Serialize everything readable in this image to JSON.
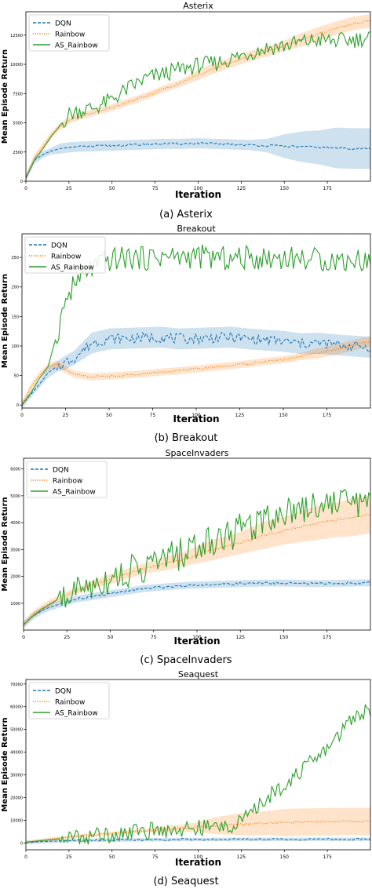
{
  "figure": {
    "ylabel": "Mean Episode Return",
    "xlabel": "Iteration"
  },
  "chart_data": [
    {
      "type": "line",
      "title": "Asterix",
      "caption": "(a) Asterix",
      "xlabel": "Iteration",
      "ylabel": "Mean Episode Return",
      "xlim": [
        0,
        200
      ],
      "ylim": [
        0,
        14500
      ],
      "xticks": [
        0,
        25,
        50,
        75,
        100,
        125,
        150,
        175
      ],
      "xtick_labels": [
        "0",
        "25",
        "50",
        "75",
        "100",
        "125",
        "150",
        "175"
      ],
      "yticks": [
        0,
        2500,
        5000,
        7500,
        10000,
        12500
      ],
      "ytick_labels": [
        "0",
        "2500",
        "5000",
        "7500",
        "10000",
        "12500"
      ],
      "legend": "top-left",
      "grid": false,
      "x": [
        0,
        5,
        10,
        15,
        20,
        25,
        30,
        40,
        50,
        60,
        70,
        80,
        90,
        100,
        110,
        120,
        130,
        140,
        150,
        160,
        170,
        180,
        190,
        199
      ],
      "series": [
        {
          "name": "DQN",
          "color": "#1f77b4",
          "style": "dashed",
          "band": [
            0.02,
            0.02,
            0.02,
            0.02,
            0.03,
            0.03,
            0.03,
            0.03,
            0.03,
            0.03,
            0.03,
            0.03,
            0.03,
            0.03,
            0.03,
            0.03,
            0.03,
            0.04,
            0.07,
            0.09,
            0.1,
            0.12,
            0.12,
            0.12
          ],
          "values": [
            300,
            1800,
            2300,
            2600,
            2800,
            2900,
            2950,
            3000,
            3050,
            3100,
            3150,
            3200,
            3200,
            3250,
            3200,
            3150,
            3100,
            3050,
            3000,
            2950,
            2900,
            2850,
            2800,
            2800
          ]
        },
        {
          "name": "Rainbow",
          "color": "#ff7f0e",
          "style": "dotted",
          "band": [
            0.02,
            0.02,
            0.02,
            0.02,
            0.02,
            0.02,
            0.02,
            0.02,
            0.02,
            0.02,
            0.02,
            0.02,
            0.02,
            0.03,
            0.03,
            0.03,
            0.03,
            0.03,
            0.03,
            0.04,
            0.04,
            0.04,
            0.04,
            0.04
          ],
          "values": [
            300,
            2000,
            3000,
            4000,
            4700,
            5200,
            5500,
            5900,
            6300,
            6800,
            7300,
            7900,
            8400,
            9100,
            9700,
            10200,
            10700,
            11100,
            11600,
            12100,
            12600,
            13100,
            13500,
            13700
          ]
        },
        {
          "name": "AS_Rainbow",
          "color": "#2ca02c",
          "style": "solid",
          "band": [
            0,
            0,
            0,
            0,
            0,
            0,
            0,
            0,
            0,
            0,
            0,
            0,
            0,
            0,
            0,
            0,
            0,
            0,
            0,
            0,
            0,
            0,
            0,
            0
          ],
          "jitter": 0.05,
          "values": [
            300,
            1800,
            2800,
            3900,
            4800,
            5700,
            6000,
            6300,
            7000,
            8000,
            8800,
            9200,
            9600,
            9900,
            10100,
            10500,
            11000,
            11400,
            11600,
            11900,
            12100,
            12000,
            12100,
            12300
          ]
        }
      ]
    },
    {
      "type": "line",
      "title": "Breakout",
      "caption": "(b) Breakout",
      "xlabel": "Iteration",
      "ylabel": "Mean Episode Return",
      "xlim": [
        0,
        200
      ],
      "ylim": [
        -5,
        290
      ],
      "xticks": [
        0,
        25,
        50,
        75,
        100,
        125,
        150,
        175
      ],
      "xtick_labels": [
        "0",
        "25",
        "50",
        "75",
        "100",
        "125",
        "150",
        "175"
      ],
      "yticks": [
        0,
        50,
        100,
        150,
        200,
        250
      ],
      "ytick_labels": [
        "0",
        "50",
        "100",
        "150",
        "200",
        "250"
      ],
      "legend": "top-left",
      "grid": false,
      "x": [
        0,
        5,
        10,
        15,
        20,
        25,
        30,
        40,
        50,
        60,
        70,
        80,
        90,
        100,
        110,
        120,
        130,
        140,
        150,
        160,
        170,
        180,
        190,
        199
      ],
      "series": [
        {
          "name": "DQN",
          "color": "#1f77b4",
          "style": "dashed",
          "band": [
            0.02,
            0.02,
            0.02,
            0.03,
            0.03,
            0.04,
            0.04,
            0.06,
            0.06,
            0.06,
            0.06,
            0.06,
            0.06,
            0.06,
            0.06,
            0.06,
            0.06,
            0.06,
            0.06,
            0.06,
            0.06,
            0.06,
            0.06,
            0.06
          ],
          "jitter": 0.03,
          "values": [
            0,
            18,
            35,
            55,
            65,
            72,
            80,
            105,
            112,
            113,
            114,
            115,
            112,
            113,
            114,
            115,
            112,
            110,
            108,
            104,
            105,
            102,
            100,
            98
          ]
        },
        {
          "name": "Rainbow",
          "color": "#ff7f0e",
          "style": "dotted",
          "band": [
            0.02,
            0.02,
            0.02,
            0.02,
            0.02,
            0.02,
            0.02,
            0.02,
            0.02,
            0.02,
            0.02,
            0.02,
            0.02,
            0.02,
            0.02,
            0.02,
            0.02,
            0.02,
            0.02,
            0.02,
            0.03,
            0.03,
            0.03,
            0.03
          ],
          "values": [
            0,
            30,
            50,
            65,
            70,
            60,
            52,
            48,
            49,
            51,
            53,
            56,
            58,
            61,
            64,
            67,
            70,
            74,
            77,
            82,
            88,
            94,
            101,
            108
          ]
        },
        {
          "name": "AS_Rainbow",
          "color": "#2ca02c",
          "style": "solid",
          "band": [
            0,
            0,
            0,
            0,
            0,
            0,
            0,
            0,
            0,
            0,
            0,
            0,
            0,
            0,
            0,
            0,
            0,
            0,
            0,
            0,
            0,
            0,
            0,
            0
          ],
          "jitter": 0.07,
          "values": [
            0,
            20,
            45,
            65,
            120,
            175,
            205,
            232,
            245,
            250,
            248,
            252,
            250,
            252,
            250,
            247,
            250,
            249,
            250,
            248,
            247,
            245,
            246,
            245
          ]
        }
      ]
    },
    {
      "type": "line",
      "title": "SpaceInvaders",
      "caption": "(c) SpaceInvaders",
      "xlabel": "Iteration",
      "ylabel": "Mean Episode Return",
      "xlim": [
        0,
        200
      ],
      "ylim": [
        0,
        6400
      ],
      "xticks": [
        0,
        25,
        50,
        75,
        100,
        125,
        150,
        175
      ],
      "xtick_labels": [
        "0",
        "25",
        "50",
        "75",
        "100",
        "125",
        "150",
        "175"
      ],
      "yticks": [
        1000,
        2000,
        3000,
        4000,
        5000,
        6000
      ],
      "ytick_labels": [
        "1000",
        "2000",
        "3000",
        "4000",
        "5000",
        "6000"
      ],
      "legend": "top-left",
      "grid": false,
      "x": [
        0,
        5,
        10,
        15,
        20,
        25,
        30,
        40,
        50,
        60,
        70,
        80,
        90,
        100,
        110,
        120,
        130,
        140,
        150,
        160,
        170,
        180,
        190,
        199
      ],
      "series": [
        {
          "name": "DQN",
          "color": "#1f77b4",
          "style": "dashed",
          "band": [
            0.02,
            0.02,
            0.02,
            0.02,
            0.02,
            0.02,
            0.02,
            0.02,
            0.02,
            0.02,
            0.02,
            0.02,
            0.02,
            0.02,
            0.02,
            0.02,
            0.02,
            0.02,
            0.02,
            0.02,
            0.02,
            0.02,
            0.02,
            0.02
          ],
          "values": [
            200,
            500,
            700,
            850,
            950,
            1050,
            1150,
            1250,
            1350,
            1450,
            1550,
            1600,
            1650,
            1680,
            1700,
            1720,
            1740,
            1750,
            1750,
            1740,
            1730,
            1740,
            1750,
            1760
          ]
        },
        {
          "name": "Rainbow",
          "color": "#ff7f0e",
          "style": "dotted",
          "band": [
            0.02,
            0.02,
            0.02,
            0.02,
            0.02,
            0.02,
            0.02,
            0.02,
            0.03,
            0.03,
            0.03,
            0.04,
            0.04,
            0.05,
            0.06,
            0.06,
            0.07,
            0.08,
            0.08,
            0.09,
            0.1,
            0.1,
            0.11,
            0.11
          ],
          "values": [
            200,
            550,
            800,
            1000,
            1150,
            1300,
            1450,
            1700,
            1900,
            2100,
            2300,
            2450,
            2600,
            2800,
            3000,
            3150,
            3350,
            3550,
            3700,
            3850,
            4000,
            4100,
            4200,
            4300
          ]
        },
        {
          "name": "AS_Rainbow",
          "color": "#2ca02c",
          "style": "solid",
          "band": [
            0,
            0,
            0,
            0,
            0,
            0,
            0,
            0,
            0,
            0,
            0,
            0,
            0,
            0,
            0,
            0,
            0,
            0,
            0,
            0,
            0,
            0,
            0,
            0
          ],
          "jitter": 0.1,
          "values": [
            200,
            500,
            750,
            950,
            1150,
            1300,
            1450,
            1700,
            1950,
            2150,
            2350,
            2600,
            2850,
            3100,
            3400,
            3600,
            3900,
            4200,
            4450,
            4600,
            4700,
            4800,
            4850,
            4700
          ]
        }
      ]
    },
    {
      "type": "line",
      "title": "Seaquest",
      "caption": "(d) Seaquest",
      "xlabel": "Iteration",
      "ylabel": "Mean Episode Return",
      "xlim": [
        0,
        200
      ],
      "ylim": [
        -3000,
        72000
      ],
      "xticks": [
        0,
        25,
        50,
        75,
        100,
        125,
        150,
        175
      ],
      "xtick_labels": [
        "0",
        "25",
        "50",
        "75",
        "100",
        "125",
        "150",
        "175"
      ],
      "yticks": [
        0,
        10000,
        20000,
        30000,
        40000,
        50000,
        60000,
        70000
      ],
      "ytick_labels": [
        "0",
        "10000",
        "20000",
        "30000",
        "40000",
        "50000",
        "60000",
        "70000"
      ],
      "legend": "top-left",
      "grid": false,
      "x": [
        0,
        5,
        10,
        15,
        20,
        25,
        30,
        40,
        50,
        60,
        70,
        80,
        90,
        100,
        110,
        120,
        130,
        140,
        150,
        160,
        170,
        180,
        190,
        199
      ],
      "series": [
        {
          "name": "DQN",
          "color": "#1f77b4",
          "style": "dashed",
          "band": [
            0.01,
            0.01,
            0.01,
            0.01,
            0.01,
            0.01,
            0.01,
            0.01,
            0.01,
            0.01,
            0.01,
            0.01,
            0.01,
            0.01,
            0.01,
            0.01,
            0.01,
            0.01,
            0.01,
            0.01,
            0.01,
            0.01,
            0.01,
            0.01
          ],
          "values": [
            200,
            400,
            600,
            750,
            900,
            1000,
            1100,
            1200,
            1300,
            1350,
            1400,
            1450,
            1500,
            1550,
            1600,
            1600,
            1600,
            1600,
            1600,
            1600,
            1600,
            1600,
            1600,
            1600
          ]
        },
        {
          "name": "Rainbow",
          "color": "#ff7f0e",
          "style": "dotted",
          "band": [
            0.01,
            0.01,
            0.01,
            0.01,
            0.01,
            0.01,
            0.01,
            0.01,
            0.01,
            0.01,
            0.01,
            0.02,
            0.02,
            0.03,
            0.05,
            0.06,
            0.07,
            0.07,
            0.08,
            0.08,
            0.08,
            0.08,
            0.08,
            0.08
          ],
          "values": [
            300,
            800,
            1300,
            1800,
            2200,
            2600,
            3000,
            3600,
            4200,
            4800,
            5400,
            6000,
            6500,
            7000,
            7600,
            8100,
            8500,
            8800,
            9000,
            9200,
            9300,
            9400,
            9500,
            9500
          ]
        },
        {
          "name": "AS_Rainbow",
          "color": "#2ca02c",
          "style": "solid",
          "band": [
            0,
            0,
            0,
            0,
            0,
            0,
            0,
            0,
            0,
            0,
            0,
            0,
            0,
            0,
            0,
            0,
            0,
            0,
            0,
            0,
            0,
            0,
            0,
            0
          ],
          "jitter": 0.05,
          "values": [
            300,
            700,
            1100,
            1500,
            1900,
            2300,
            2700,
            3300,
            4000,
            4700,
            5200,
            5700,
            6100,
            6500,
            7000,
            7800,
            12000,
            20000,
            26000,
            32000,
            38000,
            46000,
            56000,
            59000
          ]
        }
      ]
    }
  ]
}
